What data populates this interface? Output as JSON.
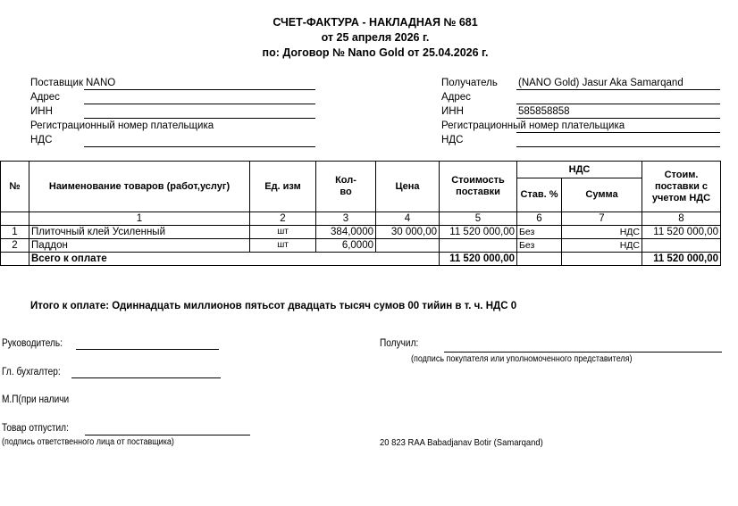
{
  "header": {
    "title": "СЧЕТ-ФАКТУРА - НАКЛАДНАЯ № 681",
    "date": "от 25 апреля 2026 г.",
    "contract": "по: Договор № Nano Gold от 25.04.2026 г."
  },
  "supplier": {
    "label": "Поставщик",
    "value": "NANO",
    "address_label": "Адрес",
    "inn_label": "ИНН",
    "reg_label": "Регистрационный номер плательщика",
    "vat_label": "НДС"
  },
  "recipient": {
    "label": "Получатель",
    "value": "(NANO Gold) Jasur Aka Samarqand",
    "address_label": "Адрес",
    "inn_label": "ИНН",
    "inn_value": "585858858",
    "reg_label": "Регистрационный номер плательщика",
    "vat_label": "НДС"
  },
  "table": {
    "headers": {
      "no": "№",
      "name": "Наименование товаров (работ,услуг)",
      "unit": "Ед. изм",
      "qty": "Кол- во",
      "price": "Цена",
      "cost": "Стоимость поставки",
      "vat": "НДС",
      "vat_rate": "Став. %",
      "vat_sum": "Сумма",
      "total": "Стоим. поставки с учетом НДС"
    },
    "col_numbers": [
      "1",
      "2",
      "3",
      "4",
      "5",
      "6",
      "7",
      "8"
    ],
    "rows": [
      {
        "no": "1",
        "name": "Плиточный клей Усиленный",
        "unit": "шт",
        "qty": "384,0000",
        "price": "30 000,00",
        "cost": "11 520 000,00",
        "vat_rate": "Без",
        "vat_sum": "НДС",
        "total": "11 520 000,00"
      },
      {
        "no": "2",
        "name": "Паддон",
        "unit": "шт",
        "qty": "6,0000",
        "price": "",
        "cost": "",
        "vat_rate": "Без",
        "vat_sum": "НДС",
        "total": ""
      }
    ],
    "total_row": {
      "label": "Всего к оплате",
      "cost": "11 520 000,00",
      "total": "11 520 000,00"
    }
  },
  "amount_words": "Итого к оплате: Одиннадцать миллионов пятьсот двадцать тысяч сумов 00 тийин  в т. ч. НДС 0",
  "signatures": {
    "director": "Руководитель:",
    "accountant": "Гл. бухгалтер:",
    "stamp": "М.П(при наличи",
    "released": "Товар  отпустил:",
    "released_note": "(подпись ответственного лица от поставщика)",
    "received": "Получил:",
    "received_note": "(подпись покупателя или уполномоченного представителя)",
    "driver": "20 823 RAA Babadjanav Botir  (Samarqand)"
  }
}
